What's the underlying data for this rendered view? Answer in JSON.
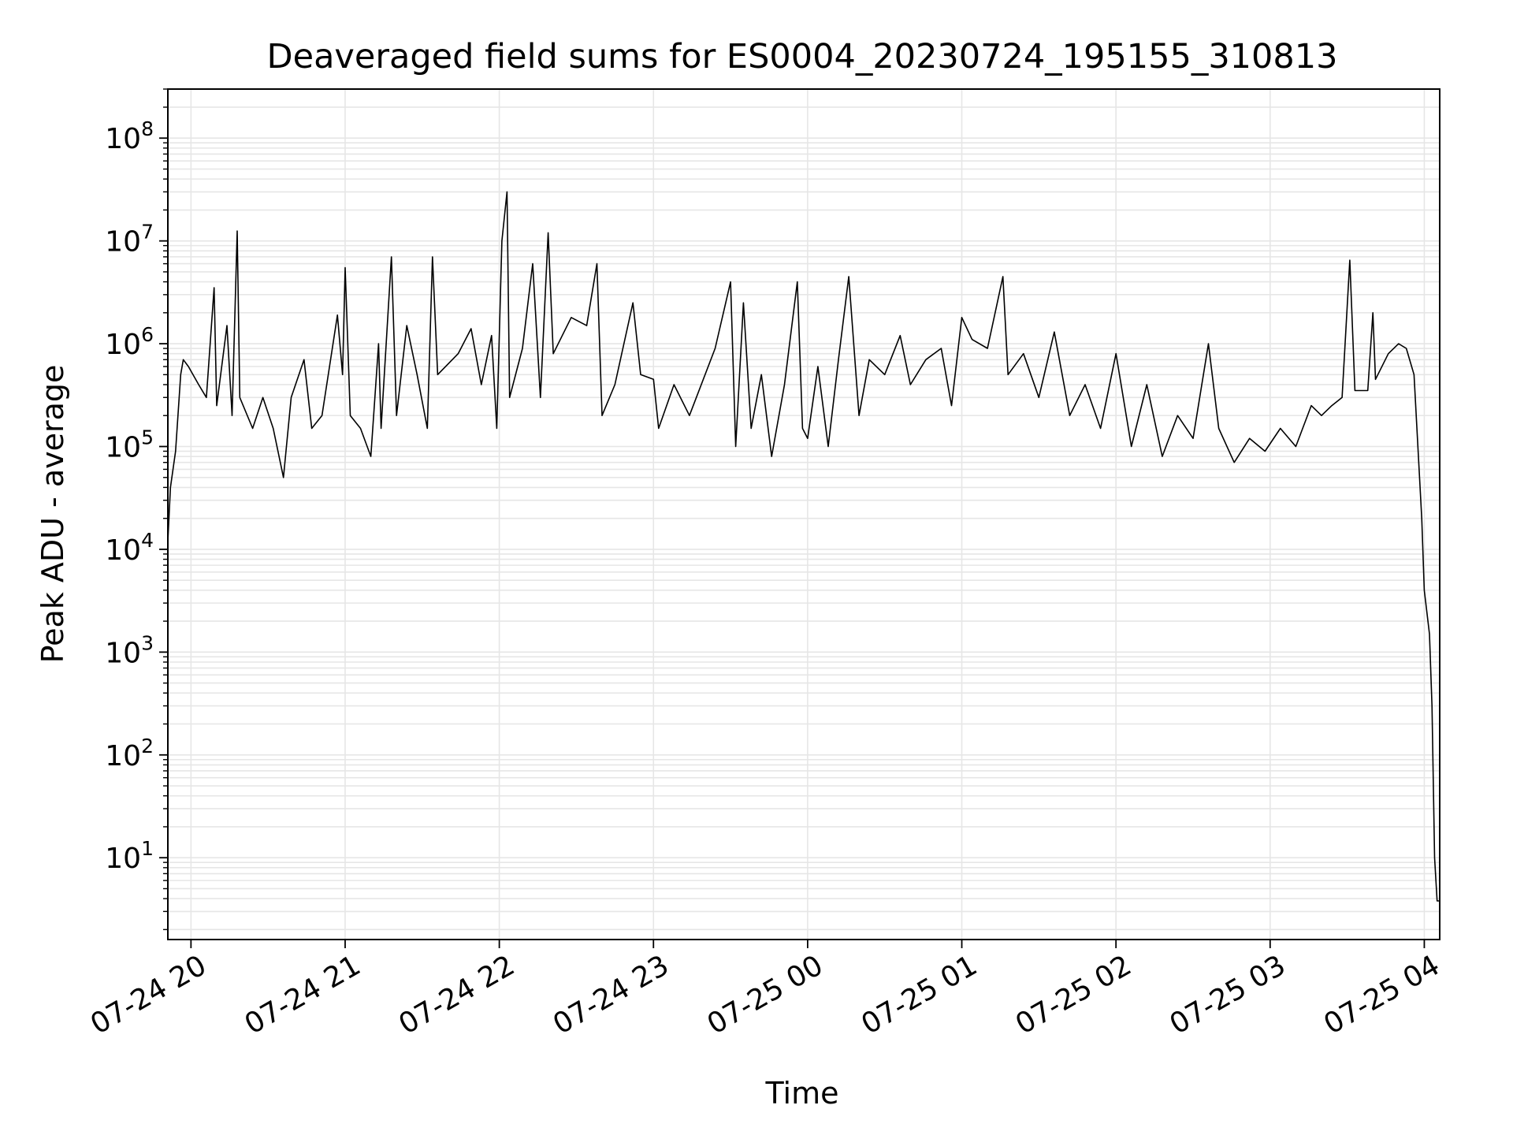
{
  "chart_data": {
    "type": "line",
    "title": "Deaveraged field sums for ES0004_20230724_195155_310813",
    "xlabel": "Time",
    "ylabel": "Peak ADU - average",
    "y_scale": "log",
    "grid": true,
    "line_color": "#000000",
    "grid_color": "#e6e6e6",
    "x_range": [
      "07-24 19:51",
      "07-25 04:06"
    ],
    "ylim": [
      1.6,
      300000000
    ],
    "x_ticks": [
      {
        "time": "07-24 20:00",
        "label": "07-24 20"
      },
      {
        "time": "07-24 21:00",
        "label": "07-24 21"
      },
      {
        "time": "07-24 22:00",
        "label": "07-24 22"
      },
      {
        "time": "07-24 23:00",
        "label": "07-24 23"
      },
      {
        "time": "07-25 00:00",
        "label": "07-25 00"
      },
      {
        "time": "07-25 01:00",
        "label": "07-25 01"
      },
      {
        "time": "07-25 02:00",
        "label": "07-25 02"
      },
      {
        "time": "07-25 03:00",
        "label": "07-25 03"
      },
      {
        "time": "07-25 04:00",
        "label": "07-25 04"
      }
    ],
    "y_ticks": [
      {
        "value": 10,
        "base": "10",
        "exp": "1"
      },
      {
        "value": 100,
        "base": "10",
        "exp": "2"
      },
      {
        "value": 1000,
        "base": "10",
        "exp": "3"
      },
      {
        "value": 10000,
        "base": "10",
        "exp": "4"
      },
      {
        "value": 100000,
        "base": "10",
        "exp": "5"
      },
      {
        "value": 1000000,
        "base": "10",
        "exp": "6"
      },
      {
        "value": 10000000,
        "base": "10",
        "exp": "7"
      },
      {
        "value": 100000000,
        "base": "10",
        "exp": "8"
      }
    ],
    "series": [
      {
        "points": [
          [
            "07-24 19:51",
            12000
          ],
          [
            "07-24 19:52",
            40000
          ],
          [
            "07-24 19:54",
            90000
          ],
          [
            "07-24 19:56",
            500000
          ],
          [
            "07-24 19:57",
            700000
          ],
          [
            "07-24 19:59",
            600000
          ],
          [
            "07-24 20:03",
            400000
          ],
          [
            "07-24 20:06",
            300000
          ],
          [
            "07-24 20:09",
            3500000
          ],
          [
            "07-24 20:10",
            250000
          ],
          [
            "07-24 20:14",
            1500000
          ],
          [
            "07-24 20:16",
            200000
          ],
          [
            "07-24 20:18",
            12500000
          ],
          [
            "07-24 20:19",
            300000
          ],
          [
            "07-24 20:24",
            150000
          ],
          [
            "07-24 20:28",
            300000
          ],
          [
            "07-24 20:32",
            150000
          ],
          [
            "07-24 20:36",
            50000
          ],
          [
            "07-24 20:39",
            300000
          ],
          [
            "07-24 20:44",
            700000
          ],
          [
            "07-24 20:47",
            150000
          ],
          [
            "07-24 20:51",
            200000
          ],
          [
            "07-24 20:57",
            1900000
          ],
          [
            "07-24 20:59",
            500000
          ],
          [
            "07-24 21:00",
            5500000
          ],
          [
            "07-24 21:02",
            200000
          ],
          [
            "07-24 21:06",
            150000
          ],
          [
            "07-24 21:10",
            80000
          ],
          [
            "07-24 21:13",
            1000000
          ],
          [
            "07-24 21:14",
            150000
          ],
          [
            "07-24 21:18",
            7000000
          ],
          [
            "07-24 21:20",
            200000
          ],
          [
            "07-24 21:24",
            1500000
          ],
          [
            "07-24 21:28",
            500000
          ],
          [
            "07-24 21:32",
            150000
          ],
          [
            "07-24 21:34",
            7000000
          ],
          [
            "07-24 21:36",
            500000
          ],
          [
            "07-24 21:44",
            800000
          ],
          [
            "07-24 21:49",
            1400000
          ],
          [
            "07-24 21:53",
            400000
          ],
          [
            "07-24 21:57",
            1200000
          ],
          [
            "07-24 21:59",
            150000
          ],
          [
            "07-24 22:01",
            10000000
          ],
          [
            "07-24 22:03",
            30000000
          ],
          [
            "07-24 22:04",
            300000
          ],
          [
            "07-24 22:09",
            900000
          ],
          [
            "07-24 22:13",
            6000000
          ],
          [
            "07-24 22:16",
            300000
          ],
          [
            "07-24 22:19",
            12000000
          ],
          [
            "07-24 22:21",
            800000
          ],
          [
            "07-24 22:28",
            1800000
          ],
          [
            "07-24 22:34",
            1500000
          ],
          [
            "07-24 22:38",
            6000000
          ],
          [
            "07-24 22:40",
            200000
          ],
          [
            "07-24 22:45",
            400000
          ],
          [
            "07-24 22:52",
            2500000
          ],
          [
            "07-24 22:55",
            500000
          ],
          [
            "07-24 23:00",
            450000
          ],
          [
            "07-24 23:02",
            150000
          ],
          [
            "07-24 23:08",
            400000
          ],
          [
            "07-24 23:14",
            200000
          ],
          [
            "07-24 23:24",
            900000
          ],
          [
            "07-24 23:30",
            4000000
          ],
          [
            "07-24 23:32",
            100000
          ],
          [
            "07-24 23:35",
            2500000
          ],
          [
            "07-24 23:38",
            150000
          ],
          [
            "07-24 23:42",
            500000
          ],
          [
            "07-24 23:46",
            80000
          ],
          [
            "07-24 23:51",
            400000
          ],
          [
            "07-24 23:56",
            4000000
          ],
          [
            "07-24 23:58",
            150000
          ],
          [
            "07-25 00:00",
            120000
          ],
          [
            "07-25 00:04",
            600000
          ],
          [
            "07-25 00:08",
            100000
          ],
          [
            "07-25 00:12",
            700000
          ],
          [
            "07-25 00:16",
            4500000
          ],
          [
            "07-25 00:20",
            200000
          ],
          [
            "07-25 00:24",
            700000
          ],
          [
            "07-25 00:30",
            500000
          ],
          [
            "07-25 00:36",
            1200000
          ],
          [
            "07-25 00:40",
            400000
          ],
          [
            "07-25 00:46",
            700000
          ],
          [
            "07-25 00:52",
            900000
          ],
          [
            "07-25 00:56",
            250000
          ],
          [
            "07-25 01:00",
            1800000
          ],
          [
            "07-25 01:04",
            1100000
          ],
          [
            "07-25 01:10",
            900000
          ],
          [
            "07-25 01:16",
            4500000
          ],
          [
            "07-25 01:18",
            500000
          ],
          [
            "07-25 01:24",
            800000
          ],
          [
            "07-25 01:30",
            300000
          ],
          [
            "07-25 01:36",
            1300000
          ],
          [
            "07-25 01:42",
            200000
          ],
          [
            "07-25 01:48",
            400000
          ],
          [
            "07-25 01:54",
            150000
          ],
          [
            "07-25 02:00",
            800000
          ],
          [
            "07-25 02:06",
            100000
          ],
          [
            "07-25 02:12",
            400000
          ],
          [
            "07-25 02:18",
            80000
          ],
          [
            "07-25 02:24",
            200000
          ],
          [
            "07-25 02:30",
            120000
          ],
          [
            "07-25 02:36",
            1000000
          ],
          [
            "07-25 02:40",
            150000
          ],
          [
            "07-25 02:46",
            70000
          ],
          [
            "07-25 02:52",
            120000
          ],
          [
            "07-25 02:58",
            90000
          ],
          [
            "07-25 03:04",
            150000
          ],
          [
            "07-25 03:10",
            100000
          ],
          [
            "07-25 03:16",
            250000
          ],
          [
            "07-25 03:20",
            200000
          ],
          [
            "07-25 03:24",
            250000
          ],
          [
            "07-25 03:28",
            300000
          ],
          [
            "07-25 03:31",
            6500000
          ],
          [
            "07-25 03:33",
            350000
          ],
          [
            "07-25 03:38",
            350000
          ],
          [
            "07-25 03:40",
            2000000
          ],
          [
            "07-25 03:41",
            450000
          ],
          [
            "07-25 03:46",
            800000
          ],
          [
            "07-25 03:50",
            1000000
          ],
          [
            "07-25 03:53",
            900000
          ],
          [
            "07-25 03:56",
            500000
          ],
          [
            "07-25 03:59",
            20000
          ],
          [
            "07-25 04:00",
            4000
          ],
          [
            "07-25 04:02",
            1500
          ],
          [
            "07-25 04:03",
            300
          ],
          [
            "07-25 04:04",
            10
          ],
          [
            "07-25 04:05",
            3.8
          ],
          [
            "07-25 04:06",
            3.8
          ]
        ]
      }
    ]
  }
}
